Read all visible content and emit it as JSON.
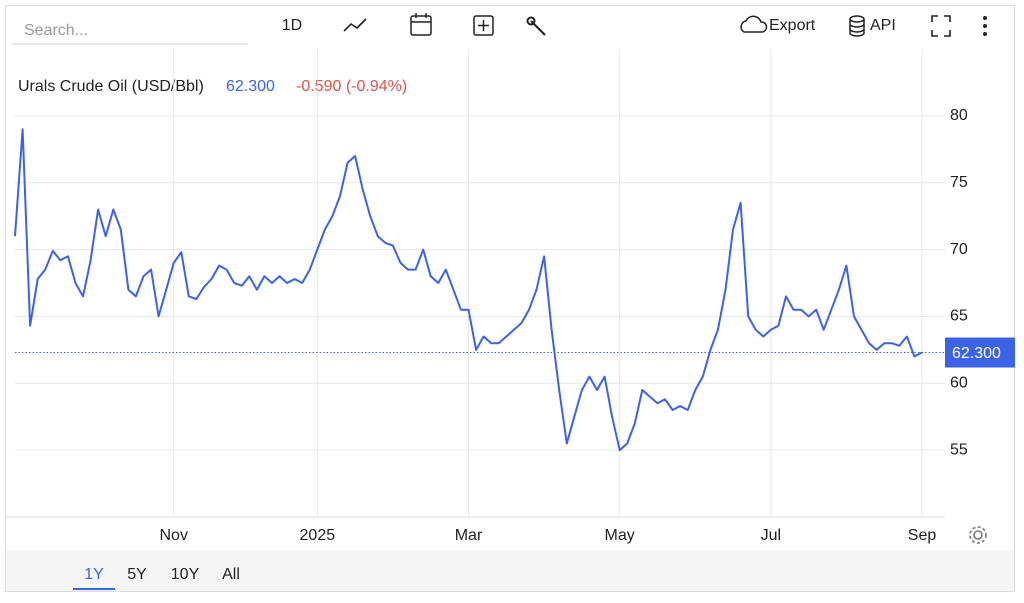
{
  "toolbar": {
    "search_placeholder": "Search...",
    "interval": "1D",
    "export": "Export",
    "api": "API"
  },
  "header": {
    "price": "62.300",
    "change": "-0.590 (-0.94%)"
  },
  "ranges": [
    "1Y",
    "5Y",
    "10Y",
    "All"
  ],
  "active_range": 0,
  "chart_data": {
    "type": "line",
    "title": "Urals Crude Oil (USD/Bbl)",
    "categories": [
      null,
      null,
      null,
      null,
      null,
      null,
      null,
      null,
      null,
      null,
      null,
      null,
      null,
      null,
      null,
      null,
      null,
      null,
      null,
      null,
      null,
      "Nov",
      null,
      null,
      null,
      null,
      null,
      null,
      null,
      null,
      null,
      null,
      null,
      null,
      null,
      null,
      null,
      null,
      null,
      null,
      "2025",
      null,
      null,
      null,
      null,
      null,
      null,
      null,
      null,
      null,
      null,
      null,
      null,
      null,
      null,
      null,
      null,
      null,
      null,
      null,
      "Mar",
      null,
      null,
      null,
      null,
      null,
      null,
      null,
      null,
      null,
      null,
      null,
      null,
      null,
      null,
      null,
      null,
      null,
      null,
      null,
      "May",
      null,
      null,
      null,
      null,
      null,
      null,
      null,
      null,
      null,
      null,
      null,
      null,
      null,
      null,
      null,
      null,
      null,
      null,
      null,
      "Jul",
      null,
      null,
      null,
      null,
      null,
      null,
      null,
      null,
      null,
      null,
      null,
      null,
      null,
      null,
      null,
      null,
      null,
      null,
      null,
      "Sep"
    ],
    "series": [
      {
        "name": "Urals Crude Oil (USD/Bbl)",
        "color": "#3c63e6",
        "values": [
          71,
          79,
          64.3,
          67.8,
          68.5,
          69.9,
          69.2,
          69.5,
          67.5,
          66.5,
          69.2,
          73,
          71,
          73,
          71.5,
          67,
          66.5,
          68,
          68.5,
          65,
          67,
          69,
          69.8,
          66.5,
          66.3,
          67.2,
          67.8,
          68.8,
          68.5,
          67.5,
          67.3,
          68,
          67,
          68,
          67.5,
          68,
          67.5,
          67.8,
          67.5,
          68.5,
          70,
          71.5,
          72.5,
          74,
          76.5,
          77,
          74.5,
          72.5,
          71,
          70.5,
          70.3,
          69,
          68.5,
          68.5,
          70,
          68,
          67.5,
          68.5,
          67,
          65.5,
          65.5,
          62.5,
          63.5,
          63,
          63,
          63.5,
          64,
          64.5,
          65.5,
          67,
          69.5,
          64,
          59.5,
          55.5,
          57.5,
          59.5,
          60.5,
          59.5,
          60.5,
          57.5,
          55,
          55.5,
          57,
          59.5,
          59,
          58.5,
          58.8,
          58,
          58.3,
          58,
          59.5,
          60.5,
          62.5,
          64,
          67,
          71.5,
          73.5,
          65,
          64,
          63.5,
          64,
          64.3,
          66.5,
          65.5,
          65.5,
          65,
          65.5,
          64,
          65.5,
          67,
          68.8,
          65,
          64,
          63,
          62.5,
          63,
          63,
          62.8,
          63.5,
          62,
          62.3
        ]
      }
    ],
    "ylim": [
      50,
      85
    ],
    "yticks": [
      55,
      60,
      65,
      70,
      75,
      80
    ],
    "grid": true,
    "yaxis_position": "right"
  }
}
